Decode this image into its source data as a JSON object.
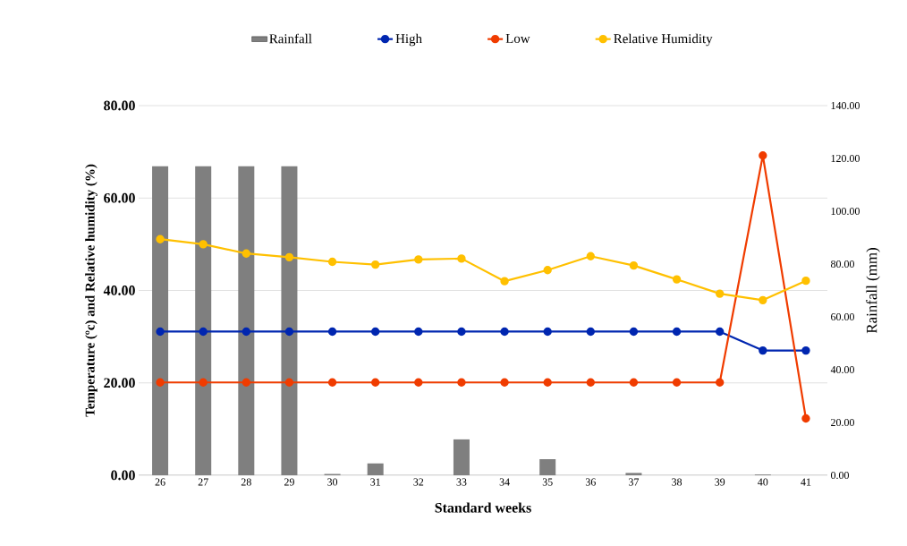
{
  "chart_data": {
    "type": "line",
    "xlabel": "Standard weeks",
    "ylabel": "Temperature (ºc) and Relative humidity (%)",
    "y2label": "Rainfall (mm)",
    "categories": [
      "26",
      "27",
      "28",
      "29",
      "30",
      "31",
      "32",
      "33",
      "34",
      "35",
      "36",
      "37",
      "38",
      "39",
      "40",
      "41"
    ],
    "series": [
      {
        "name": "Rainfall",
        "type": "bar",
        "axis": "y2",
        "color": "#7f7f7f",
        "values": [
          117,
          117,
          117,
          117,
          0.5,
          4.5,
          0,
          13.6,
          0,
          6.1,
          0,
          0.9,
          0,
          0,
          0.3,
          0
        ]
      },
      {
        "name": "High",
        "color": "#0026b0",
        "values": [
          31.1,
          31.1,
          31.1,
          31.1,
          31.1,
          31.1,
          31.1,
          31.1,
          31.1,
          31.1,
          31.1,
          31.1,
          31.1,
          31.1,
          27.0,
          27.0
        ]
      },
      {
        "name": "Low",
        "color": "#f03c00",
        "values": [
          20.1,
          20.1,
          20.1,
          20.1,
          20.1,
          20.1,
          20.1,
          20.1,
          20.1,
          20.1,
          20.1,
          20.1,
          20.1,
          20.1,
          69.2,
          12.3
        ]
      },
      {
        "name": "Relative Humidity",
        "color": "#ffc000",
        "values": [
          51.1,
          50.0,
          48.0,
          47.2,
          46.2,
          45.6,
          46.7,
          46.9,
          42.0,
          44.4,
          47.4,
          45.4,
          42.4,
          39.3,
          37.9,
          42.1
        ]
      }
    ],
    "ylim": [
      0,
      80
    ],
    "yticks": [
      {
        "value": 0,
        "label": "0.00"
      },
      {
        "value": 20,
        "label": "20.00"
      },
      {
        "value": 40,
        "label": "40.00"
      },
      {
        "value": 60,
        "label": "60.00"
      },
      {
        "value": 80,
        "label": "80.00"
      }
    ],
    "y2lim": [
      0,
      140
    ],
    "y2ticks": [
      {
        "value": 0,
        "label": "0.00"
      },
      {
        "value": 20,
        "label": "20.00"
      },
      {
        "value": 40,
        "label": "40.00"
      },
      {
        "value": 60,
        "label": "60.00"
      },
      {
        "value": 80,
        "label": "80.00"
      },
      {
        "value": 100,
        "label": "100.00"
      },
      {
        "value": 120,
        "label": "120.00"
      },
      {
        "value": 140,
        "label": "140.00"
      }
    ],
    "grid": "y",
    "legend": "top",
    "marker": "circle",
    "line_style": "solid"
  }
}
